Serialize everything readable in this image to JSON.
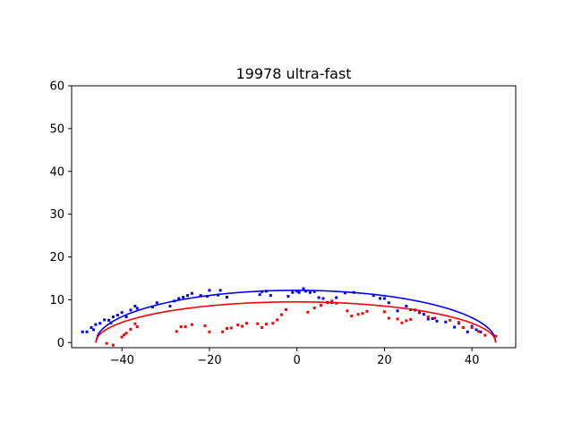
{
  "chart_data": {
    "type": "scatter",
    "title": "19978 ultra-fast",
    "xlabel": "",
    "ylabel": "",
    "xlim": [
      -51.5,
      50
    ],
    "ylim": [
      -1.2,
      60
    ],
    "xticks": [
      -40,
      -20,
      0,
      20,
      40
    ],
    "yticks": [
      0,
      10,
      20,
      30,
      40,
      50,
      60
    ],
    "grid": false,
    "colors": {
      "blue": "#0000ff",
      "red": "#ff0000",
      "axes": "#000000"
    },
    "series": [
      {
        "kind": "points",
        "color": "#0000ff",
        "x": [
          -49,
          -48,
          -47,
          -46.5,
          -46,
          -45,
          -44,
          -43,
          -42.5,
          -42,
          -41,
          -40,
          -39,
          -38,
          -37,
          -36.5,
          -33,
          -32,
          -29,
          -28,
          -27,
          -26,
          -25,
          -24,
          -22,
          -20.5,
          -20,
          -18,
          -17.5,
          -16,
          -8.5,
          -8,
          -7,
          -6,
          -2,
          -1,
          0,
          0.5,
          1.5,
          2,
          3,
          4,
          5,
          6,
          7,
          8,
          9,
          11,
          13,
          17.5,
          19,
          20,
          21,
          23,
          25,
          26,
          27,
          28,
          29,
          30,
          31,
          32,
          34,
          36,
          37,
          38,
          39,
          40,
          41,
          42
        ],
        "y": [
          2.5,
          2.5,
          3.5,
          3,
          4.2,
          4.5,
          5.3,
          5.2,
          4.6,
          6,
          6.4,
          7,
          6,
          7.6,
          8.5,
          8,
          8.3,
          9.3,
          8.5,
          9.7,
          10.3,
          10.6,
          11,
          11.5,
          11,
          10.8,
          12.2,
          11.1,
          12.2,
          10.6,
          11.2,
          11.9,
          12,
          11,
          10.8,
          11.7,
          12,
          11.7,
          12.6,
          12,
          11.7,
          11.9,
          10.5,
          10.3,
          9.4,
          9.3,
          10.5,
          11.6,
          11.7,
          11,
          10.3,
          10.3,
          9.3,
          7.4,
          8.5,
          7.7,
          7.6,
          7,
          6.6,
          5.5,
          5.6,
          5,
          4.8,
          3.6,
          4.5,
          3.5,
          2.5,
          3.8,
          3,
          2.5
        ]
      },
      {
        "kind": "points",
        "color": "#ff0000",
        "x": [
          -43.5,
          -42,
          -40,
          -39.5,
          -39,
          -38,
          -37,
          -36.5,
          -27.5,
          -26.5,
          -25.5,
          -24,
          -21,
          -20,
          -17,
          -16,
          -15,
          -13.5,
          -12.5,
          -11.5,
          -9,
          -8,
          -7,
          -5.5,
          -4.5,
          -3.5,
          -2.5,
          2.5,
          4,
          5.5,
          7,
          8,
          9,
          11.5,
          12.5,
          14,
          15,
          16,
          20,
          21,
          23,
          24,
          25,
          26,
          28,
          30,
          31.5,
          35,
          37,
          38,
          40,
          41.5,
          43,
          45.5
        ],
        "y": [
          -0.2,
          -0.6,
          1.3,
          1.8,
          2.2,
          3.1,
          4.4,
          3.7,
          2.6,
          3.7,
          3.7,
          4.2,
          3.9,
          2.5,
          2.5,
          3.3,
          3.4,
          4.1,
          3.8,
          4.5,
          4.4,
          3.5,
          4.3,
          4.5,
          5.3,
          6.5,
          7.7,
          7.1,
          8.1,
          8.7,
          9.3,
          9.7,
          9.2,
          7.4,
          6.2,
          6.6,
          6.8,
          7.3,
          7.2,
          5.7,
          5.5,
          4.6,
          5.1,
          5.4,
          7.3,
          6,
          5.7,
          5.2,
          4.7,
          3.5,
          3.5,
          2.6,
          1.7,
          1.5
        ]
      },
      {
        "kind": "semi-ellipse",
        "color": "#0000ff",
        "x_start": -46,
        "x_end": 45.5,
        "y_base": 0,
        "peak": 12.2
      },
      {
        "kind": "semi-ellipse",
        "color": "#ff0000",
        "x_start": -46,
        "x_end": 45.5,
        "y_base": 0,
        "peak": 9.5
      }
    ]
  }
}
